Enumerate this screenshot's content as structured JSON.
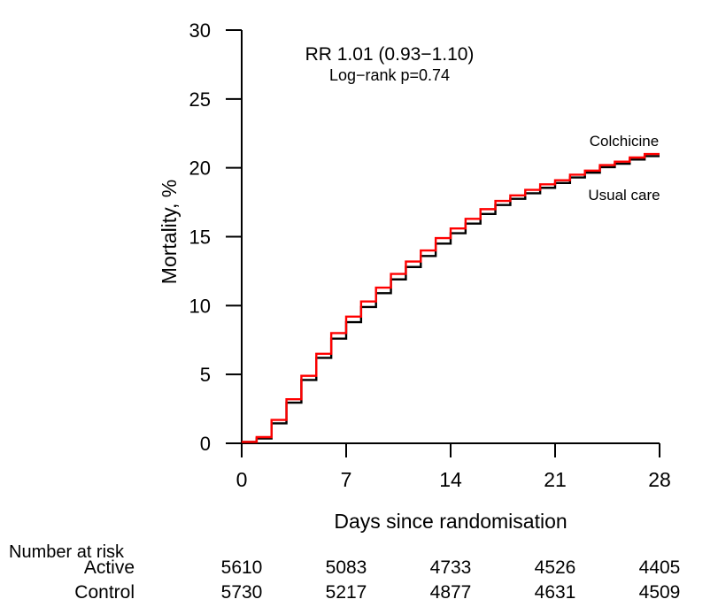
{
  "chart_data": {
    "type": "line",
    "subtype": "kaplan-meier-cumulative-incidence-step",
    "annotation": {
      "rr": "RR 1.01 (0.93−1.10)",
      "logrank": "Log−rank p=0.74"
    },
    "xlabel": "Days since randomisation",
    "ylabel": "Mortality, %",
    "xlim": [
      0,
      28
    ],
    "ylim": [
      0,
      30
    ],
    "xticks": [
      0,
      7,
      14,
      21,
      28
    ],
    "yticks": [
      0,
      5,
      10,
      15,
      20,
      25,
      30
    ],
    "grid": false,
    "legend_position": "labels-at-curve-end",
    "x": [
      0,
      1,
      2,
      3,
      4,
      5,
      6,
      7,
      8,
      9,
      10,
      11,
      12,
      13,
      14,
      15,
      16,
      17,
      18,
      19,
      20,
      21,
      22,
      23,
      24,
      25,
      26,
      27,
      28
    ],
    "series": [
      {
        "name": "Colchicine",
        "color": "#ff0000",
        "values": [
          0.1,
          0.45,
          1.7,
          3.2,
          4.9,
          6.5,
          8.0,
          9.2,
          10.3,
          11.3,
          12.3,
          13.2,
          14.0,
          14.9,
          15.6,
          16.3,
          17.0,
          17.6,
          18.0,
          18.4,
          18.8,
          19.1,
          19.5,
          19.8,
          20.2,
          20.45,
          20.75,
          21.0,
          21.0
        ]
      },
      {
        "name": "Usual care",
        "color": "#000000",
        "values": [
          0.1,
          0.35,
          1.45,
          2.95,
          4.6,
          6.2,
          7.6,
          8.8,
          9.9,
          10.9,
          11.9,
          12.8,
          13.6,
          14.5,
          15.25,
          15.95,
          16.65,
          17.3,
          17.75,
          18.15,
          18.55,
          18.9,
          19.3,
          19.65,
          20.05,
          20.3,
          20.6,
          20.85,
          20.85
        ]
      }
    ]
  },
  "risk_table": {
    "title": "Number at risk",
    "days": [
      0,
      7,
      14,
      21,
      28
    ],
    "rows": [
      {
        "label": "Active",
        "color": "#ff0000",
        "values": [
          "5610",
          "5083",
          "4733",
          "4526",
          "4405"
        ]
      },
      {
        "label": "Control",
        "color": "#000000",
        "values": [
          "5730",
          "5217",
          "4877",
          "4631",
          "4509"
        ]
      }
    ]
  },
  "colors": {
    "red": "#ff0000",
    "black": "#000000",
    "background": "#ffffff"
  }
}
